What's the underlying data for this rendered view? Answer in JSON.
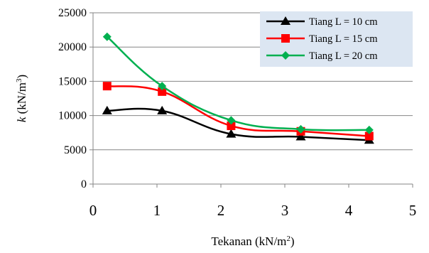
{
  "chart_data": {
    "type": "line",
    "title": "",
    "xlabel": "Tekanan (kN/m²)",
    "ylabel": "k (kN/m³)",
    "ylabel_parts": {
      "symbol": "k",
      "unit_prefix": " (kN/m",
      "unit_exp": "3",
      "unit_suffix": ")"
    },
    "xlabel_parts": {
      "text": "Tekanan (kN/m",
      "unit_exp": "2",
      "unit_suffix": ")"
    },
    "xlim": [
      0,
      5
    ],
    "ylim": [
      0,
      25000
    ],
    "x_ticks": [
      0,
      1,
      2,
      3,
      4,
      5
    ],
    "y_ticks": [
      0,
      5000,
      10000,
      15000,
      20000,
      25000
    ],
    "grid": "horizontal",
    "legend_position": "top-right",
    "x": [
      0.22,
      1.08,
      2.16,
      3.25,
      4.32
    ],
    "series": [
      {
        "name": "Tiang L = 10 cm",
        "values": [
          10700,
          10700,
          7300,
          6900,
          6400
        ],
        "color": "#000000",
        "marker": "triangle"
      },
      {
        "name": "Tiang L = 15 cm",
        "values": [
          14300,
          13500,
          8500,
          7700,
          7000
        ],
        "color": "#ff0000",
        "marker": "square"
      },
      {
        "name": "Tiang L = 20 cm",
        "values": [
          21500,
          14300,
          9300,
          8000,
          7900
        ],
        "color": "#00b050",
        "marker": "diamond"
      }
    ],
    "legend_background": "#dce6f2"
  }
}
